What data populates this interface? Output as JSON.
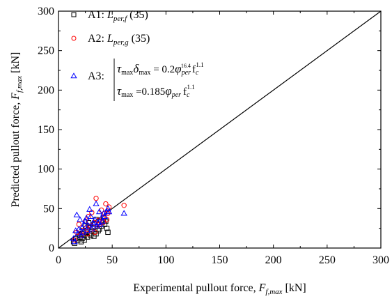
{
  "chart_data": {
    "type": "scatter",
    "xlim": [
      0,
      300
    ],
    "ylim": [
      0,
      300
    ],
    "xticks": [
      0,
      50,
      100,
      150,
      200,
      250,
      300
    ],
    "yticks": [
      0,
      50,
      100,
      150,
      200,
      250,
      300
    ],
    "xlabel": {
      "main": "Experimental pullout force, ",
      "sym": "F",
      "sub": "f,max",
      "unit": " [kN]"
    },
    "ylabel": {
      "main": "Predicted pullout force, ",
      "sym": "F",
      "sub": "f,max",
      "unit": " [kN]"
    },
    "reference_line": {
      "from": [
        0,
        0
      ],
      "to": [
        300,
        300
      ],
      "color": "#000000"
    },
    "legend_position": "top-left",
    "series": [
      {
        "name": "A1",
        "legend": {
          "id": "A1: ",
          "sym": "L",
          "sub": "per,f",
          "suffix": " (35)"
        },
        "marker": "square",
        "color": "#000000",
        "points": [
          [
            14,
            8
          ],
          [
            15,
            6
          ],
          [
            16,
            12
          ],
          [
            18,
            10
          ],
          [
            20,
            14
          ],
          [
            21,
            8
          ],
          [
            22,
            12
          ],
          [
            22,
            18
          ],
          [
            23,
            22
          ],
          [
            24,
            10
          ],
          [
            24,
            16
          ],
          [
            25,
            28
          ],
          [
            26,
            20
          ],
          [
            27,
            14
          ],
          [
            28,
            32
          ],
          [
            29,
            18
          ],
          [
            30,
            16
          ],
          [
            31,
            22
          ],
          [
            32,
            26
          ],
          [
            33,
            15
          ],
          [
            34,
            30
          ],
          [
            35,
            18
          ],
          [
            35,
            36
          ],
          [
            37,
            22
          ],
          [
            38,
            24
          ],
          [
            40,
            28
          ],
          [
            41,
            33
          ],
          [
            42,
            38
          ],
          [
            43,
            30
          ],
          [
            44,
            34
          ],
          [
            45,
            25
          ],
          [
            46,
            20
          ]
        ]
      },
      {
        "name": "A2",
        "legend": {
          "id": "A2: ",
          "sym": "L",
          "sub": "per,g",
          "suffix": " (35)"
        },
        "marker": "circle",
        "color": "#ff0000",
        "points": [
          [
            15,
            10
          ],
          [
            17,
            20
          ],
          [
            19,
            30
          ],
          [
            21,
            16
          ],
          [
            23,
            22
          ],
          [
            25,
            34
          ],
          [
            26,
            26
          ],
          [
            27,
            18
          ],
          [
            28,
            40
          ],
          [
            29,
            28
          ],
          [
            30,
            24
          ],
          [
            31,
            45
          ],
          [
            33,
            32
          ],
          [
            34,
            20
          ],
          [
            35,
            63
          ],
          [
            36,
            28
          ],
          [
            37,
            35
          ],
          [
            38,
            30
          ],
          [
            40,
            48
          ],
          [
            41,
            38
          ],
          [
            42,
            33
          ],
          [
            43,
            44
          ],
          [
            44,
            56
          ],
          [
            45,
            36
          ],
          [
            46,
            44
          ],
          [
            47,
            52
          ],
          [
            61,
            54
          ]
        ]
      },
      {
        "name": "A3",
        "legend": {
          "id": "A3:"
        },
        "marker": "triangle",
        "color": "#0000ff",
        "points": [
          [
            14,
            12
          ],
          [
            15,
            8
          ],
          [
            16,
            22
          ],
          [
            17,
            42
          ],
          [
            18,
            18
          ],
          [
            19,
            24
          ],
          [
            20,
            36
          ],
          [
            21,
            16
          ],
          [
            22,
            26
          ],
          [
            23,
            20
          ],
          [
            24,
            30
          ],
          [
            25,
            34
          ],
          [
            26,
            38
          ],
          [
            27,
            22
          ],
          [
            28,
            28
          ],
          [
            29,
            49
          ],
          [
            30,
            40
          ],
          [
            31,
            24
          ],
          [
            32,
            32
          ],
          [
            33,
            30
          ],
          [
            34,
            36
          ],
          [
            35,
            56
          ],
          [
            36,
            28
          ],
          [
            37,
            32
          ],
          [
            38,
            46
          ],
          [
            39,
            30
          ],
          [
            40,
            38
          ],
          [
            41,
            34
          ],
          [
            42,
            44
          ],
          [
            43,
            40
          ],
          [
            45,
            46
          ],
          [
            46,
            50
          ],
          [
            47,
            46
          ],
          [
            61,
            44
          ]
        ]
      }
    ],
    "equations": [
      {
        "tau": "τ",
        "tau_sub": "max",
        "delta": "δ",
        "delta_sub": "max",
        "rhs": " = 0.2",
        "phi": "φ",
        "phi_sub": "per",
        "phi_sup": "16.4",
        "fc": "f",
        "fc_sub": "c",
        "fc_sup": "1.1"
      },
      {
        "tau": "τ",
        "tau_sub": "max",
        "rhs": " =0.185",
        "phi": "φ",
        "phi_sub": "per",
        "fc": "f",
        "fc_sub": "c",
        "fc_sup": "1.1"
      }
    ]
  }
}
